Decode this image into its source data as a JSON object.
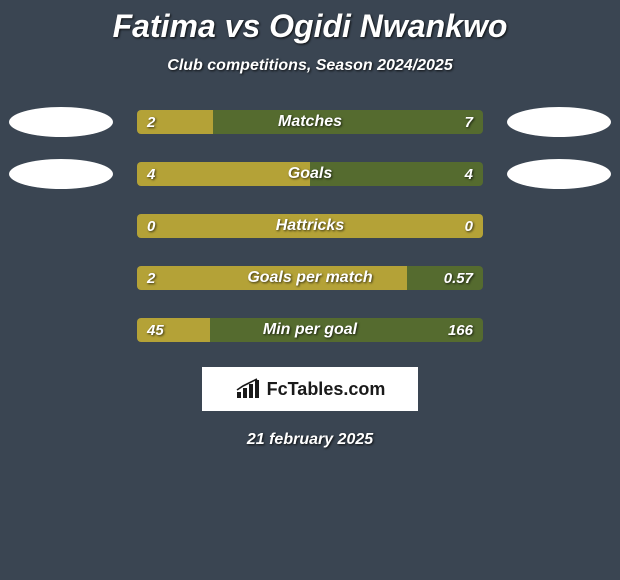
{
  "title": "Fatima vs Ogidi Nwankwo",
  "subtitle": "Club competitions, Season 2024/2025",
  "colors": {
    "background": "#3a4552",
    "left_fill": "#b4a237",
    "right_fill": "#556b2f",
    "ellipse": "#ffffff",
    "text": "#ffffff"
  },
  "stats": [
    {
      "label": "Matches",
      "left_val": "2",
      "right_val": "7",
      "left_pct": 22,
      "right_pct": 78,
      "show_ellipses": true
    },
    {
      "label": "Goals",
      "left_val": "4",
      "right_val": "4",
      "left_pct": 50,
      "right_pct": 50,
      "show_ellipses": true
    },
    {
      "label": "Hattricks",
      "left_val": "0",
      "right_val": "0",
      "left_pct": 100,
      "right_pct": 0,
      "show_ellipses": false
    },
    {
      "label": "Goals per match",
      "left_val": "2",
      "right_val": "0.57",
      "left_pct": 78,
      "right_pct": 22,
      "show_ellipses": false
    },
    {
      "label": "Min per goal",
      "left_val": "45",
      "right_val": "166",
      "left_pct": 21,
      "right_pct": 79,
      "show_ellipses": false
    }
  ],
  "logo": {
    "text": "FcTables.com"
  },
  "date": "21 february 2025"
}
